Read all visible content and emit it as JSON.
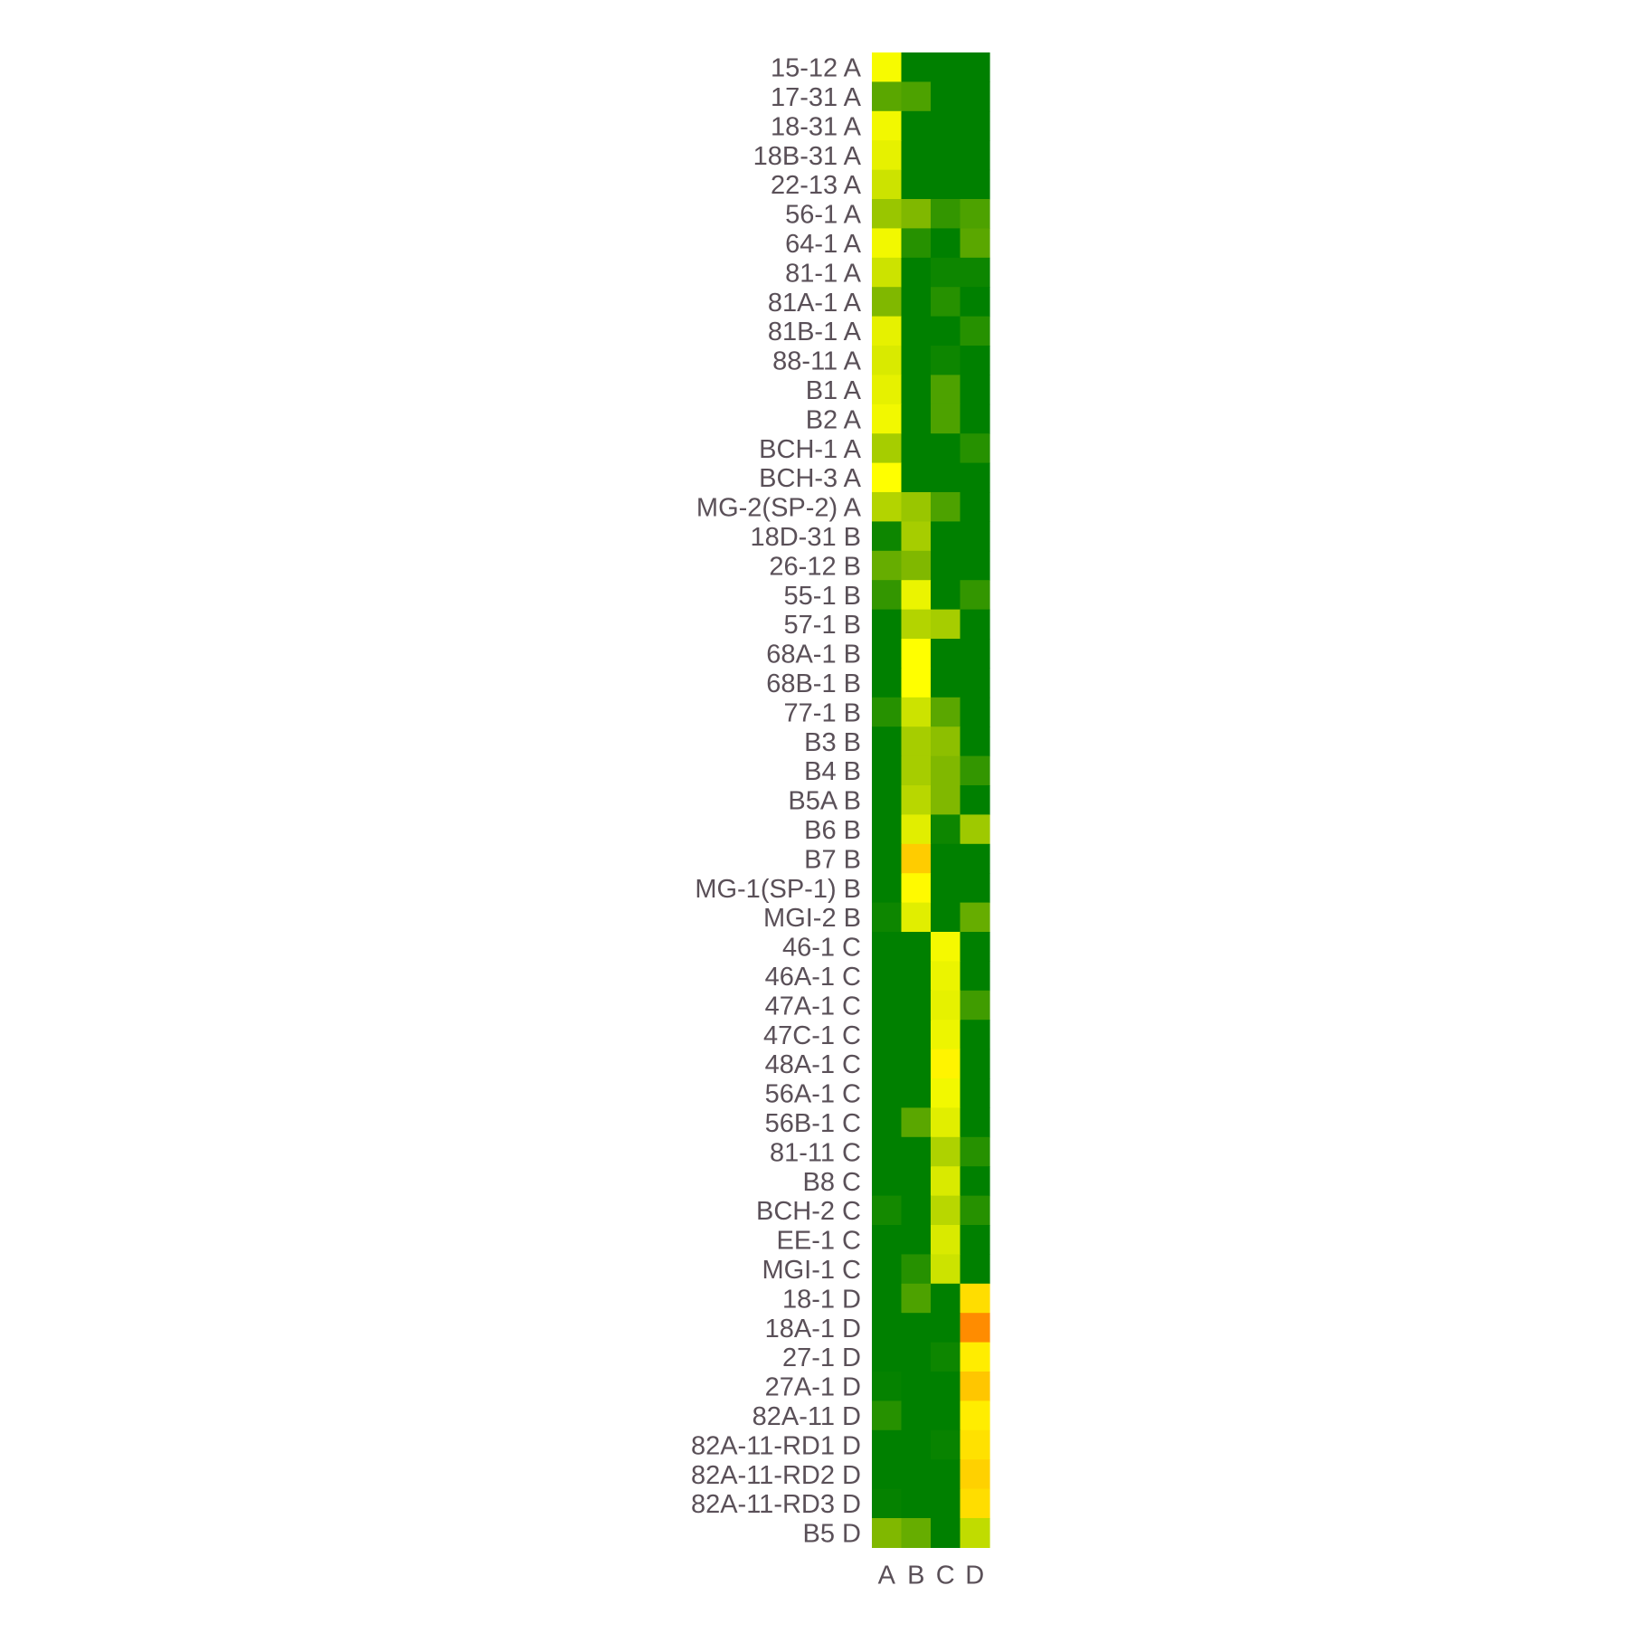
{
  "chart_data": {
    "type": "heatmap",
    "title": "",
    "xlabel": "",
    "ylabel": "",
    "columns": [
      "A",
      "B",
      "C",
      "D"
    ],
    "rows": [
      "15-12 A",
      "17-31 A",
      "18-31 A",
      "18B-31 A",
      "22-13 A",
      "56-1 A",
      "64-1 A",
      "81-1 A",
      "81A-1 A",
      "81B-1 A",
      "88-11 A",
      "B1 A",
      "B2 A",
      "BCH-1 A",
      "BCH-3 A",
      "MG-2(SP-2) A",
      "18D-31 B",
      "26-12 B",
      "55-1 B",
      "57-1 B",
      "68A-1 B",
      "68B-1 B",
      "77-1 B",
      "B3 B",
      "B4 B",
      "B5A B",
      "B6 B",
      "B7 B",
      "MG-1(SP-1) B",
      "MGI-2 B",
      "46-1 C",
      "46A-1 C",
      "47A-1 C",
      "47C-1 C",
      "48A-1 C",
      "56A-1 C",
      "56B-1 C",
      "81-11 C",
      "B8 C",
      "BCH-2 C",
      "EE-1 C",
      "MGI-1 C",
      "18-1 D",
      "18A-1 D",
      "27-1 D",
      "27A-1 D",
      "82A-11 D",
      "82A-11-RD1 D",
      "82A-11-RD2 D",
      "82A-11-RD3 D",
      "B5 D"
    ],
    "values": [
      [
        0.97,
        0.0,
        0.0,
        0.0
      ],
      [
        0.35,
        0.3,
        0.0,
        0.0
      ],
      [
        0.95,
        0.0,
        0.0,
        0.0
      ],
      [
        0.9,
        0.0,
        0.0,
        0.0
      ],
      [
        0.8,
        0.0,
        0.0,
        0.0
      ],
      [
        0.6,
        0.5,
        0.2,
        0.3
      ],
      [
        0.95,
        0.15,
        0.0,
        0.35
      ],
      [
        0.8,
        0.0,
        0.05,
        0.05
      ],
      [
        0.5,
        0.0,
        0.15,
        0.0
      ],
      [
        0.9,
        0.0,
        0.0,
        0.15
      ],
      [
        0.85,
        0.0,
        0.05,
        0.0
      ],
      [
        0.9,
        0.0,
        0.3,
        0.0
      ],
      [
        0.95,
        0.0,
        0.3,
        0.0
      ],
      [
        0.65,
        0.0,
        0.0,
        0.15
      ],
      [
        1.0,
        0.0,
        0.0,
        0.0
      ],
      [
        0.7,
        0.6,
        0.3,
        0.0
      ],
      [
        0.05,
        0.65,
        0.0,
        0.0
      ],
      [
        0.4,
        0.5,
        0.0,
        0.0
      ],
      [
        0.2,
        0.92,
        0.0,
        0.2
      ],
      [
        0.0,
        0.7,
        0.65,
        0.0
      ],
      [
        0.0,
        1.0,
        0.0,
        0.0
      ],
      [
        0.0,
        1.0,
        0.0,
        0.0
      ],
      [
        0.15,
        0.8,
        0.35,
        0.0
      ],
      [
        0.0,
        0.65,
        0.55,
        0.0
      ],
      [
        0.0,
        0.65,
        0.5,
        0.2
      ],
      [
        0.0,
        0.72,
        0.5,
        0.0
      ],
      [
        0.0,
        0.88,
        0.05,
        0.62
      ],
      [
        0.0,
        1.22,
        0.0,
        0.0
      ],
      [
        0.0,
        1.02,
        0.0,
        0.0
      ],
      [
        0.05,
        0.88,
        0.0,
        0.4
      ],
      [
        0.0,
        0.0,
        0.96,
        0.0
      ],
      [
        0.0,
        0.0,
        0.92,
        0.0
      ],
      [
        0.0,
        0.0,
        0.9,
        0.25
      ],
      [
        0.0,
        0.0,
        0.93,
        0.0
      ],
      [
        0.0,
        0.0,
        1.05,
        0.0
      ],
      [
        0.0,
        0.0,
        0.95,
        0.0
      ],
      [
        0.0,
        0.35,
        0.88,
        0.0
      ],
      [
        0.0,
        0.0,
        0.68,
        0.15
      ],
      [
        0.0,
        0.0,
        0.85,
        0.0
      ],
      [
        0.08,
        0.0,
        0.72,
        0.15
      ],
      [
        0.0,
        0.0,
        0.85,
        0.0
      ],
      [
        0.0,
        0.15,
        0.8,
        0.0
      ],
      [
        0.0,
        0.3,
        0.0,
        1.15
      ],
      [
        0.0,
        0.0,
        0.0,
        1.5
      ],
      [
        0.0,
        0.0,
        0.05,
        1.08
      ],
      [
        0.02,
        0.0,
        0.0,
        1.25
      ],
      [
        0.15,
        0.0,
        0.0,
        1.08
      ],
      [
        0.0,
        0.0,
        0.03,
        1.13
      ],
      [
        0.0,
        0.0,
        0.0,
        1.2
      ],
      [
        0.02,
        0.0,
        0.0,
        1.15
      ],
      [
        0.5,
        0.4,
        0.0,
        0.75
      ]
    ],
    "color_scale": {
      "stops": [
        {
          "v": 0.0,
          "color": "#008000"
        },
        {
          "v": 0.5,
          "color": "#80b800"
        },
        {
          "v": 1.0,
          "color": "#ffff00"
        },
        {
          "v": 1.5,
          "color": "#ff8c00"
        }
      ]
    },
    "grid": false,
    "legend": "none",
    "label_color": "#5a5058"
  }
}
